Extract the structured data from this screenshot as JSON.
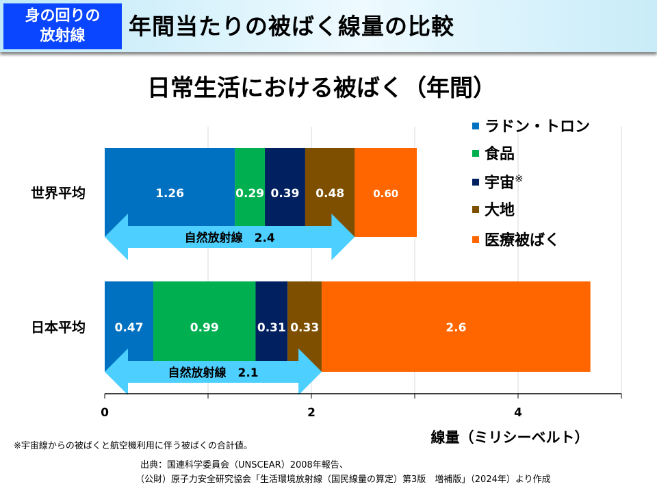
{
  "header": {
    "tag_line1": "身の回りの",
    "tag_line2": "放射線",
    "title": "年間当たりの被ばく線量の比較"
  },
  "chart_data": {
    "type": "bar",
    "orientation": "horizontal",
    "stacked": true,
    "title": "日常生活における被ばく（年間）",
    "xlabel": "線量（ミリシーベルト）",
    "xlim": [
      0,
      5
    ],
    "xticks": [
      0,
      2,
      4
    ],
    "categories": [
      "世界平均",
      "日本平均"
    ],
    "series": [
      {
        "name": "ラドン・トロン",
        "color": "#0070c0",
        "values": [
          1.26,
          0.47
        ],
        "labels": [
          "1.26",
          "0.47"
        ]
      },
      {
        "name": "食品",
        "color": "#00b050",
        "values": [
          0.29,
          0.99
        ],
        "labels": [
          "0.29",
          "0.99"
        ]
      },
      {
        "name": "宇宙",
        "name_mark": "※",
        "color": "#002060",
        "values": [
          0.39,
          0.31
        ],
        "labels": [
          "0.39",
          "0.31"
        ]
      },
      {
        "name": "大地",
        "color": "#7f4f00",
        "values": [
          0.48,
          0.33
        ],
        "labels": [
          "0.48",
          "0.33"
        ]
      },
      {
        "name": "医療被ばく",
        "color": "#ff6600",
        "values": [
          0.6,
          2.6
        ],
        "labels": [
          "0.60",
          "2.6"
        ]
      }
    ],
    "annotations": [
      {
        "category": "世界平均",
        "label": "自然放射線　2.4",
        "value": 2.42,
        "color": "#4dcfff"
      },
      {
        "category": "日本平均",
        "label": "自然放射線　2.1",
        "value": 2.1,
        "color": "#4dcfff"
      }
    ],
    "grid": true,
    "legend": "right"
  },
  "footnote": "※宇宙線からの被ばくと航空機利用に伴う被ばくの合計値。",
  "source_line1": "出典：国連科学委員会（UNSCEAR）2008年報告、",
  "source_line2": "（公財）原子力安全研究協会「生活環境放射線（国民線量の算定）第3版　増補版」（2024年）より作成"
}
